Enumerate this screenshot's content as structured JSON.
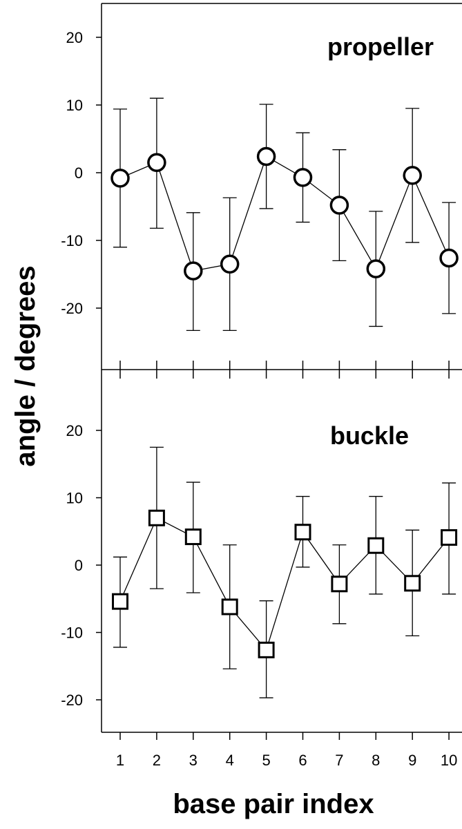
{
  "chart_data": [
    {
      "type": "line",
      "panel_label": "propeller",
      "marker": "circle",
      "x": [
        1,
        2,
        3,
        4,
        5,
        6,
        7,
        8,
        9,
        10
      ],
      "y": [
        -0.8,
        1.5,
        -14.5,
        -13.5,
        2.4,
        -0.7,
        -4.8,
        -14.2,
        -0.4,
        -12.6
      ],
      "err_upper": [
        9.4,
        11.0,
        -5.9,
        -3.7,
        10.1,
        5.9,
        3.4,
        -5.7,
        9.5,
        -4.4
      ],
      "err_lower": [
        -11.0,
        -8.2,
        -23.3,
        -23.3,
        -5.3,
        -7.3,
        -13.0,
        -22.7,
        -10.3,
        -20.8
      ],
      "ylim": [
        -29,
        25
      ],
      "yticks": [
        20,
        10,
        0,
        -10,
        -20
      ],
      "ytick_labels": [
        "20",
        "10",
        "0",
        "-10",
        "-20"
      ]
    },
    {
      "type": "line",
      "panel_label": "buckle",
      "marker": "square",
      "x": [
        1,
        2,
        3,
        4,
        5,
        6,
        7,
        8,
        9,
        10
      ],
      "y": [
        -5.4,
        7.0,
        4.2,
        -6.2,
        -12.6,
        4.9,
        -2.8,
        2.9,
        -2.7,
        4.1
      ],
      "err_upper": [
        1.2,
        17.5,
        12.3,
        3.0,
        -5.3,
        10.2,
        3.0,
        10.2,
        5.2,
        12.2
      ],
      "err_lower": [
        -12.2,
        -3.5,
        -4.1,
        -15.4,
        -19.7,
        -0.3,
        -8.7,
        -4.3,
        -10.5,
        -4.3
      ],
      "ylim": [
        -26,
        29
      ],
      "yticks": [
        20,
        10,
        0,
        -10,
        -20
      ],
      "ytick_labels": [
        "20",
        "10",
        "0",
        "-10",
        "-20"
      ]
    }
  ],
  "axes": {
    "xlabel": "base pair index",
    "ylabel": "angle / degrees",
    "xtick_labels": [
      "1",
      "2",
      "3",
      "4",
      "5",
      "6",
      "7",
      "8",
      "9",
      "10"
    ]
  },
  "colors": {
    "line": "#000000",
    "marker_fill": "#ffffff",
    "background": "#ffffff"
  }
}
